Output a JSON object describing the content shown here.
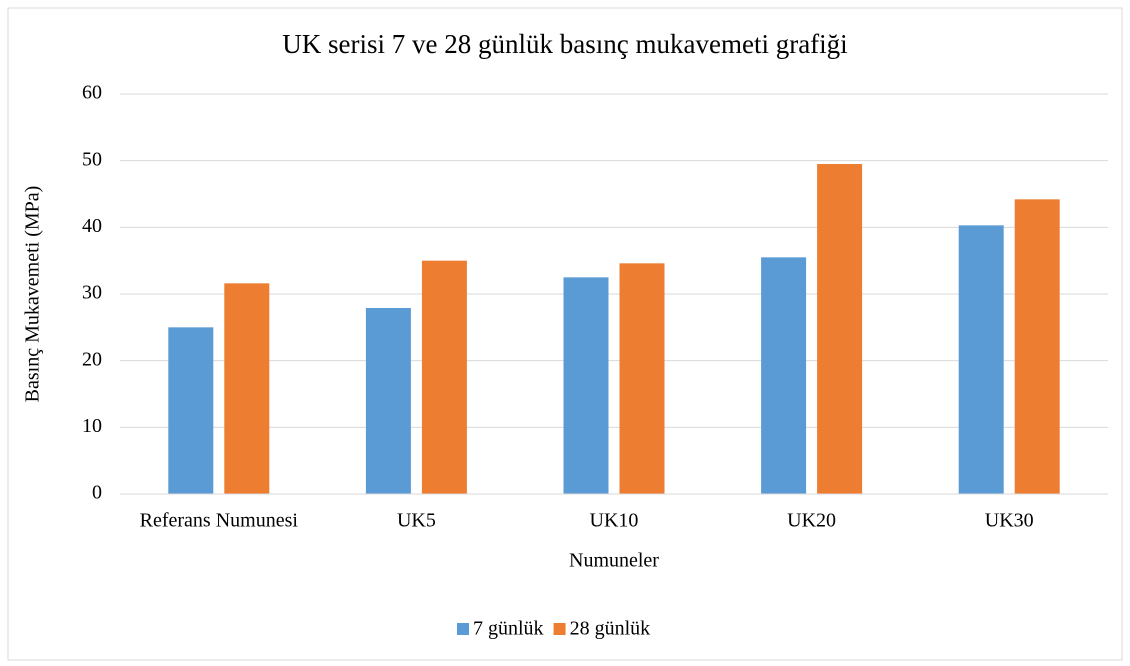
{
  "chart_data": {
    "type": "bar",
    "title": "UK serisi 7 ve 28 günlük basınç mukavemeti grafiği",
    "x_label": "Numuneler",
    "y_label": "Basınç Mukavemeti (MPa)",
    "categories": [
      "Referans Numunesi",
      "UK5",
      "UK10",
      "UK20",
      "UK30"
    ],
    "series": [
      {
        "name": "7 günlük",
        "color": "#5b9bd5",
        "values": [
          25.0,
          27.9,
          32.5,
          35.5,
          40.3
        ]
      },
      {
        "name": "28 günlük",
        "color": "#ed7d31",
        "values": [
          31.6,
          35.0,
          34.6,
          49.5,
          44.2
        ]
      }
    ],
    "ylim": [
      0,
      60
    ],
    "yticks": [
      0,
      10,
      20,
      30,
      40,
      50,
      60
    ],
    "grid": true,
    "legend": "bottom"
  }
}
